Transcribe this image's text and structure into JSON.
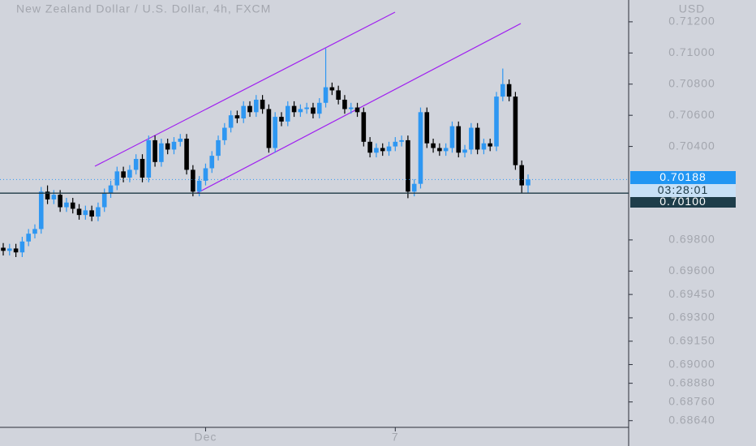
{
  "chart_data": {
    "type": "candlestick",
    "title": "New Zealand Dollar / U.S. Dollar, 4h, FXCM",
    "y_label": "USD",
    "categories": [
      null,
      null,
      null,
      null,
      null,
      null,
      null,
      null,
      null,
      null,
      null,
      null,
      null,
      null,
      null,
      null,
      null,
      null,
      null,
      null,
      null,
      null,
      null,
      null,
      null,
      null,
      null,
      null,
      null,
      null,
      null,
      null,
      "Dec",
      null,
      null,
      null,
      null,
      null,
      null,
      null,
      null,
      null,
      null,
      null,
      null,
      null,
      null,
      null,
      null,
      null,
      null,
      null,
      null,
      null,
      null,
      null,
      null,
      null,
      null,
      null,
      null,
      null,
      "7",
      null,
      null,
      null,
      null,
      null,
      null,
      null,
      null,
      null,
      null,
      null,
      null,
      null,
      null,
      null,
      null,
      null,
      null,
      null,
      null,
      null
    ],
    "open": [
      0.6975,
      0.6973,
      0.69745,
      0.6972,
      0.6979,
      0.6984,
      0.6987,
      0.7011,
      0.7006,
      0.7009,
      0.7001,
      0.7004,
      0.7,
      0.6996,
      0.6999,
      0.6995,
      0.7001,
      0.701,
      0.7015,
      0.7024,
      0.702,
      0.7025,
      0.7032,
      0.702,
      0.7044,
      0.703,
      0.7042,
      0.7038,
      0.7043,
      0.7045,
      0.7025,
      0.7011,
      0.7018,
      0.7026,
      0.7034,
      0.7044,
      0.7052,
      0.706,
      0.7058,
      0.7066,
      0.7062,
      0.707,
      0.7064,
      0.7039,
      0.7059,
      0.7056,
      0.7066,
      0.7062,
      0.7064,
      0.7065,
      0.7061,
      0.7068,
      0.7078,
      0.7076,
      0.707,
      0.7064,
      0.7065,
      0.7062,
      0.7043,
      0.7036,
      0.7039,
      0.7037,
      0.704,
      0.7043,
      0.7044,
      0.7011,
      0.7016,
      0.7062,
      0.7042,
      0.7039,
      0.7037,
      0.7039,
      0.7053,
      0.7036,
      0.7038,
      0.7052,
      0.7038,
      0.7042,
      0.704,
      0.7072,
      0.708,
      0.7072,
      0.7028,
      0.7015
    ],
    "high": [
      0.6978,
      0.69775,
      0.69775,
      0.6982,
      0.6987,
      0.699,
      0.7014,
      0.7015,
      0.7012,
      0.7012,
      0.7007,
      0.7007,
      0.7003,
      0.7002,
      0.7002,
      0.7004,
      0.7013,
      0.7018,
      0.7027,
      0.7027,
      0.7028,
      0.7035,
      0.7035,
      0.7047,
      0.7047,
      0.7045,
      0.7045,
      0.7046,
      0.7048,
      0.7048,
      0.7028,
      0.7021,
      0.7029,
      0.7037,
      0.7047,
      0.7055,
      0.7063,
      0.7063,
      0.7069,
      0.7069,
      0.7073,
      0.7073,
      0.7067,
      0.7062,
      0.7062,
      0.7069,
      0.7069,
      0.7067,
      0.7068,
      0.7068,
      0.7071,
      0.71029,
      0.7081,
      0.7079,
      0.7073,
      0.7068,
      0.7068,
      0.7065,
      0.7046,
      0.7042,
      0.7042,
      0.7043,
      0.7046,
      0.7047,
      0.7047,
      0.7019,
      0.7065,
      0.7065,
      0.7045,
      0.7042,
      0.7042,
      0.7056,
      0.7056,
      0.7041,
      0.7055,
      0.7055,
      0.7045,
      0.7045,
      0.7075,
      0.709,
      0.7083,
      0.7075,
      0.7031,
      0.7022
    ],
    "low": [
      0.697,
      0.697,
      0.6969,
      0.6969,
      0.6976,
      0.6981,
      0.6984,
      0.7003,
      0.7003,
      0.6998,
      0.6998,
      0.6997,
      0.6993,
      0.6993,
      0.6992,
      0.6992,
      0.6998,
      0.7007,
      0.7012,
      0.7017,
      0.7017,
      0.7022,
      0.7017,
      0.7017,
      0.7027,
      0.7027,
      0.7035,
      0.7035,
      0.704,
      0.7022,
      0.7008,
      0.7008,
      0.7015,
      0.7023,
      0.7031,
      0.7041,
      0.7049,
      0.7055,
      0.7055,
      0.7059,
      0.7059,
      0.7061,
      0.7036,
      0.7036,
      0.7053,
      0.7053,
      0.7059,
      0.7059,
      0.7061,
      0.7058,
      0.7058,
      0.7065,
      0.7073,
      0.7067,
      0.7061,
      0.7061,
      0.7059,
      0.704,
      0.7033,
      0.7033,
      0.7034,
      0.7034,
      0.7037,
      0.704,
      0.70068,
      0.7008,
      0.7013,
      0.7039,
      0.7036,
      0.7034,
      0.7034,
      0.7036,
      0.7033,
      0.7033,
      0.7035,
      0.7035,
      0.7035,
      0.7037,
      0.7037,
      0.7069,
      0.7069,
      0.7025,
      0.701,
      0.701
    ],
    "close": [
      0.6973,
      0.69745,
      0.6972,
      0.6979,
      0.6984,
      0.6987,
      0.7011,
      0.7006,
      0.7009,
      0.7001,
      0.7004,
      0.7,
      0.6996,
      0.6999,
      0.6995,
      0.7001,
      0.701,
      0.7015,
      0.7024,
      0.702,
      0.7025,
      0.7032,
      0.702,
      0.7044,
      0.703,
      0.7042,
      0.7038,
      0.7043,
      0.7045,
      0.7025,
      0.7011,
      0.7018,
      0.7026,
      0.7034,
      0.7044,
      0.7052,
      0.706,
      0.7058,
      0.7066,
      0.7062,
      0.707,
      0.7064,
      0.7039,
      0.7059,
      0.7056,
      0.7066,
      0.7062,
      0.7064,
      0.7065,
      0.7061,
      0.7068,
      0.7078,
      0.7076,
      0.707,
      0.7064,
      0.7065,
      0.7062,
      0.7043,
      0.7036,
      0.7039,
      0.7037,
      0.704,
      0.7043,
      0.7044,
      0.7011,
      0.7016,
      0.7062,
      0.7042,
      0.7039,
      0.7037,
      0.7039,
      0.7053,
      0.7036,
      0.7038,
      0.7052,
      0.7038,
      0.7042,
      0.704,
      0.7072,
      0.708,
      0.7072,
      0.7028,
      0.7015,
      0.70188
    ],
    "up_color": "#2e97f2",
    "down_color": "#000000",
    "ylim": [
      0.68597,
      0.7134
    ],
    "yticks": [
      {
        "value": 0.712,
        "label": "0.71200"
      },
      {
        "value": 0.71,
        "label": "0.71000"
      },
      {
        "value": 0.708,
        "label": "0.70800"
      },
      {
        "value": 0.706,
        "label": "0.70600"
      },
      {
        "value": 0.704,
        "label": "0.70400"
      },
      {
        "value": 0.698,
        "label": "0.69800"
      },
      {
        "value": 0.696,
        "label": "0.69600"
      },
      {
        "value": 0.6945,
        "label": "0.69450"
      },
      {
        "value": 0.693,
        "label": "0.69300"
      },
      {
        "value": 0.6915,
        "label": "0.69150"
      },
      {
        "value": 0.69,
        "label": "0.69000"
      },
      {
        "value": 0.6888,
        "label": "0.68880"
      },
      {
        "value": 0.6876,
        "label": "0.68760"
      },
      {
        "value": 0.6864,
        "label": "0.68640"
      }
    ],
    "last_price": {
      "value": 0.70188,
      "label": "0.70188",
      "countdown": "03:28:01"
    },
    "level": {
      "value": 0.701,
      "label": "0.70100"
    }
  }
}
